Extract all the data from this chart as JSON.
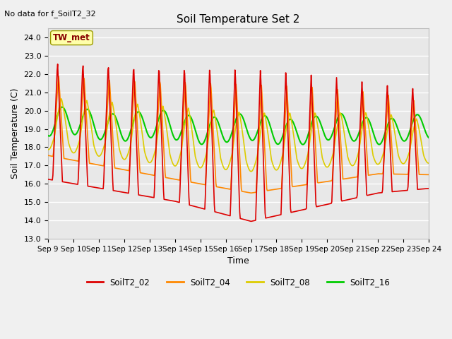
{
  "title": "Soil Temperature Set 2",
  "subtitle": "No data for f_SoilT2_32",
  "ylabel": "Soil Temperature (C)",
  "xlabel": "Time",
  "annotation": "TW_met",
  "ylim": [
    13.0,
    24.5
  ],
  "yticks": [
    13.0,
    14.0,
    15.0,
    16.0,
    17.0,
    18.0,
    19.0,
    20.0,
    21.0,
    22.0,
    23.0,
    24.0
  ],
  "background_color": "#f0f0f0",
  "plot_bg_color": "#e8e8e8",
  "grid_color": "#ffffff",
  "series_order": [
    "SoilT2_16",
    "SoilT2_08",
    "SoilT2_04",
    "SoilT2_02"
  ],
  "series": {
    "SoilT2_02": {
      "color": "#dd0000",
      "lw": 1.2
    },
    "SoilT2_04": {
      "color": "#ff8800",
      "lw": 1.2
    },
    "SoilT2_08": {
      "color": "#ddcc00",
      "lw": 1.2
    },
    "SoilT2_16": {
      "color": "#00cc00",
      "lw": 1.5
    }
  },
  "legend_labels": [
    "SoilT2_02",
    "SoilT2_04",
    "SoilT2_08",
    "SoilT2_16"
  ],
  "legend_colors": [
    "#dd0000",
    "#ff8800",
    "#ddcc00",
    "#00cc00"
  ],
  "figsize": [
    6.4,
    4.8
  ],
  "dpi": 100
}
